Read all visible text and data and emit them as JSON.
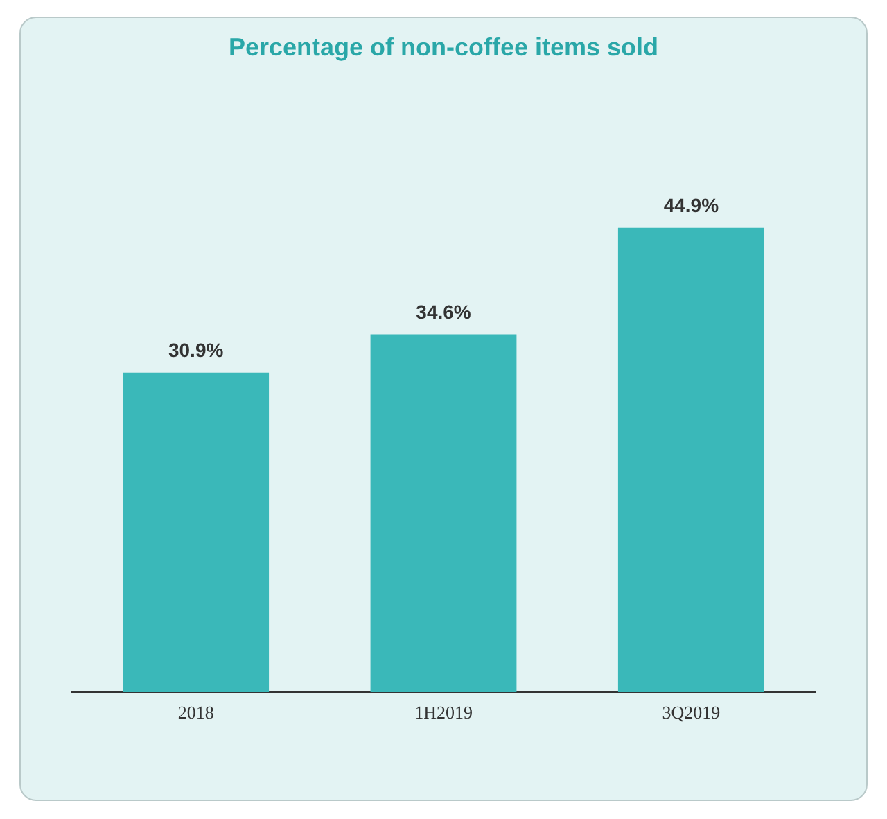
{
  "chart_data": {
    "type": "bar",
    "title": "Percentage of non-coffee items sold",
    "categories": [
      "2018",
      "1H2019",
      "3Q2019"
    ],
    "values": [
      30.9,
      34.6,
      44.9
    ],
    "value_labels": [
      "30.9%",
      "34.6%",
      "44.9%"
    ],
    "color": "#3ab8b9",
    "tick_labels": "x",
    "grid": false,
    "legend": false
  }
}
